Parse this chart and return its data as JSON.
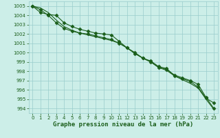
{
  "title": "Graphe pression niveau de la mer (hPa)",
  "x_values": [
    0,
    1,
    2,
    3,
    4,
    5,
    6,
    7,
    8,
    9,
    10,
    11,
    12,
    13,
    14,
    15,
    16,
    17,
    18,
    19,
    20,
    21,
    22,
    23
  ],
  "line1": [
    1005.0,
    1004.3,
    1004.1,
    1004.0,
    1003.2,
    1002.8,
    1002.5,
    1002.3,
    1002.1,
    1002.0,
    1001.9,
    1001.2,
    1000.5,
    1000.0,
    999.4,
    999.1,
    998.5,
    998.3,
    997.5,
    997.2,
    996.9,
    996.3,
    995.1,
    994.6
  ],
  "line2": [
    1005.0,
    1004.6,
    1004.0,
    1003.2,
    1002.6,
    1002.3,
    1002.1,
    1002.0,
    1001.8,
    1001.6,
    1001.4,
    1001.0,
    1000.5,
    999.9,
    999.4,
    999.0,
    998.4,
    998.2,
    997.6,
    997.3,
    997.0,
    996.6,
    995.2,
    994.0
  ],
  "line3_smooth": [
    1005.0,
    1004.8,
    1004.3,
    1003.5,
    1002.8,
    1002.4,
    1002.1,
    1001.9,
    1001.7,
    1001.5,
    1001.3,
    1001.0,
    1000.5,
    999.9,
    999.4,
    999.0,
    998.4,
    998.1,
    997.5,
    997.1,
    996.7,
    996.2,
    995.0,
    993.9
  ],
  "ylim": [
    993.5,
    1005.5
  ],
  "xlim": [
    -0.5,
    23.5
  ],
  "yticks": [
    994,
    995,
    996,
    997,
    998,
    999,
    1000,
    1001,
    1002,
    1003,
    1004,
    1005
  ],
  "xticks": [
    0,
    1,
    2,
    3,
    4,
    5,
    6,
    7,
    8,
    9,
    10,
    11,
    12,
    13,
    14,
    15,
    16,
    17,
    18,
    19,
    20,
    21,
    22,
    23
  ],
  "line_color": "#1a5e1a",
  "bg_color": "#cceee8",
  "grid_color": "#99cccc",
  "marker_size": 2.5,
  "line_width": 0.8,
  "title_fontsize": 6.5,
  "tick_fontsize": 5.0
}
